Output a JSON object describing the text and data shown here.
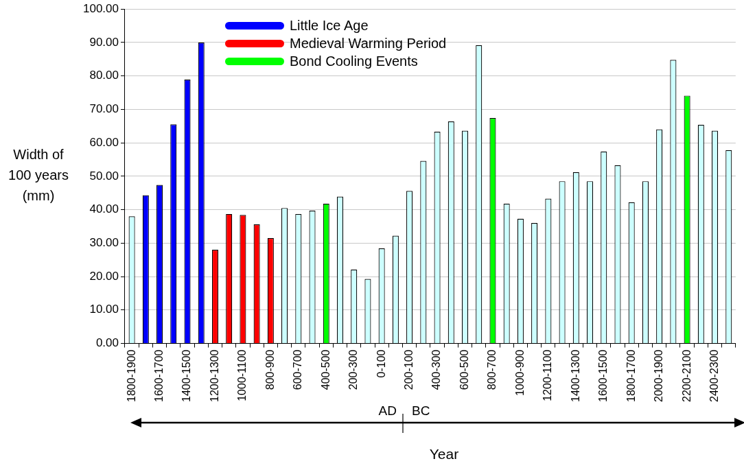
{
  "chart_data": {
    "type": "bar",
    "ylabel": "Width of 100 years (mm)",
    "xlabel": "Year",
    "categories": [
      "1800-1900",
      null,
      "1600-1700",
      null,
      "1400-1500",
      null,
      "1200-1300",
      null,
      "1000-1100",
      null,
      "800-900",
      null,
      "600-700",
      null,
      "400-500",
      null,
      "200-300",
      null,
      "0-100",
      null,
      "200-100",
      null,
      "400-300",
      null,
      "600-500",
      null,
      "800-700",
      null,
      "1000-900",
      null,
      "1200-1100",
      null,
      "1400-1300",
      null,
      "1600-1500",
      null,
      "1800-1700",
      null,
      "2000-1900",
      null,
      "2200-2100",
      null,
      "2400-2300",
      null
    ],
    "series": [
      {
        "color": "#ccffff",
        "values": [
          38.0,
          null,
          null,
          null,
          null,
          null,
          null,
          null,
          null,
          null,
          null,
          40.5,
          38.7,
          39.7,
          null,
          43.9,
          22.1,
          19.3,
          28.4,
          32.2,
          45.6,
          54.6,
          63.3,
          66.4,
          63.6,
          89.2,
          null,
          41.8,
          37.3,
          36.0,
          43.3,
          48.5,
          51.2,
          48.5,
          57.4,
          53.3,
          42.2,
          48.5,
          64.0,
          84.8,
          null,
          65.4,
          63.6,
          57.8
        ]
      },
      {
        "name": "Little Ice Age",
        "color": "#0000ff",
        "values": [
          null,
          44.3,
          47.4,
          65.5,
          78.9,
          90.0,
          null,
          null,
          null,
          null,
          null,
          null,
          null,
          null,
          null,
          null,
          null,
          null,
          null,
          null,
          null,
          null,
          null,
          null,
          null,
          null,
          null,
          null,
          null,
          null,
          null,
          null,
          null,
          null,
          null,
          null,
          null,
          null,
          null,
          null,
          null,
          null,
          null,
          null
        ]
      },
      {
        "name": "Medieval Warming Period",
        "color": "#ff0000",
        "values": [
          null,
          null,
          null,
          null,
          null,
          null,
          28.0,
          38.7,
          38.4,
          35.6,
          31.5,
          null,
          null,
          null,
          null,
          null,
          null,
          null,
          null,
          null,
          null,
          null,
          null,
          null,
          null,
          null,
          null,
          null,
          null,
          null,
          null,
          null,
          null,
          null,
          null,
          null,
          null,
          null,
          null,
          null,
          null,
          null,
          null,
          null
        ]
      },
      {
        "name": "Bond Cooling Events",
        "color": "#00ff00",
        "values": [
          null,
          null,
          null,
          null,
          null,
          null,
          null,
          null,
          null,
          null,
          null,
          null,
          null,
          null,
          41.8,
          null,
          null,
          null,
          null,
          null,
          null,
          null,
          null,
          null,
          null,
          null,
          67.4,
          null,
          null,
          null,
          null,
          null,
          null,
          null,
          null,
          null,
          null,
          null,
          null,
          null,
          74.1,
          null,
          null,
          null
        ]
      }
    ],
    "ylim": [
      0,
      100
    ],
    "yticks": [
      {
        "value": 0,
        "label": "0.00"
      },
      {
        "value": 10,
        "label": "10.00"
      },
      {
        "value": 20,
        "label": "20.00"
      },
      {
        "value": 30,
        "label": "30.00"
      },
      {
        "value": 40,
        "label": "40.00"
      },
      {
        "value": 50,
        "label": "50.00"
      },
      {
        "value": 60,
        "label": "60.00"
      },
      {
        "value": 70,
        "label": "70.00"
      },
      {
        "value": 80,
        "label": "80.00"
      },
      {
        "value": 90,
        "label": "90.00"
      },
      {
        "value": 100,
        "label": "100.00"
      }
    ],
    "grid": "y",
    "legend": "top left",
    "annotations": [
      "AD",
      "BC"
    ]
  }
}
